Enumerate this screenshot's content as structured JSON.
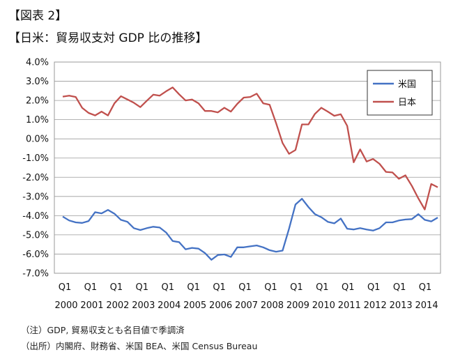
{
  "figure_label": "【図表 2】",
  "title": "【日米：貿易収支対 GDP 比の推移】",
  "notes": [
    "（注）GDP, 貿易収支とも名目値で季調済",
    "（出所）内閣府、財務省、米国 BEA、米国 Census Bureau"
  ],
  "chart_data": {
    "type": "line",
    "title": "【日米：貿易収支対 GDP 比の推移】",
    "xlabel": "",
    "ylabel": "",
    "ylim": [
      -7.0,
      4.0
    ],
    "yticks": [
      "4.0%",
      "3.0%",
      "2.0%",
      "1.0%",
      "0.0%",
      "-1.0%",
      "-2.0%",
      "-3.0%",
      "-4.0%",
      "-5.0%",
      "-6.0%",
      "-7.0%"
    ],
    "x_quarter_labels": [
      "Q1",
      "Q1",
      "Q1",
      "Q1",
      "Q1",
      "Q1",
      "Q1",
      "Q1",
      "Q1",
      "Q1",
      "Q1",
      "Q1",
      "Q1",
      "Q1",
      "Q1"
    ],
    "x_year_labels": [
      "2000",
      "2001",
      "2002",
      "2003",
      "2004",
      "2005",
      "2006",
      "2007",
      "2008",
      "2009",
      "2010",
      "2011",
      "2012",
      "2013",
      "2014"
    ],
    "grid": true,
    "legend": "top-right",
    "series": [
      {
        "name": "米国",
        "color": "#4472c4",
        "values": [
          -4.05,
          -4.25,
          -4.35,
          -4.38,
          -4.28,
          -3.82,
          -3.88,
          -3.7,
          -3.9,
          -4.22,
          -4.32,
          -4.65,
          -4.75,
          -4.65,
          -4.58,
          -4.62,
          -4.88,
          -5.32,
          -5.38,
          -5.75,
          -5.68,
          -5.72,
          -5.95,
          -6.3,
          -6.05,
          -6.02,
          -6.15,
          -5.65,
          -5.65,
          -5.6,
          -5.55,
          -5.65,
          -5.8,
          -5.88,
          -5.82,
          -4.68,
          -3.42,
          -3.12,
          -3.55,
          -3.92,
          -4.08,
          -4.32,
          -4.4,
          -4.15,
          -4.68,
          -4.72,
          -4.65,
          -4.72,
          -4.78,
          -4.65,
          -4.35,
          -4.35,
          -4.25,
          -4.2,
          -4.18,
          -3.92,
          -4.22,
          -4.3,
          -4.1
        ]
      },
      {
        "name": "日本",
        "color": "#c0504d",
        "values": [
          2.2,
          2.25,
          2.18,
          1.62,
          1.35,
          1.22,
          1.42,
          1.22,
          1.85,
          2.22,
          2.05,
          1.88,
          1.65,
          1.98,
          2.3,
          2.25,
          2.48,
          2.68,
          2.32,
          2.0,
          2.05,
          1.85,
          1.45,
          1.45,
          1.38,
          1.62,
          1.42,
          1.82,
          2.15,
          2.18,
          2.35,
          1.85,
          1.78,
          0.82,
          -0.22,
          -0.78,
          -0.58,
          0.75,
          0.75,
          1.3,
          1.62,
          1.42,
          1.2,
          1.28,
          0.68,
          -1.22,
          -0.55,
          -1.18,
          -1.05,
          -1.3,
          -1.72,
          -1.75,
          -2.08,
          -1.9,
          -2.45,
          -3.1,
          -3.68,
          -2.35,
          -2.52
        ]
      }
    ]
  }
}
